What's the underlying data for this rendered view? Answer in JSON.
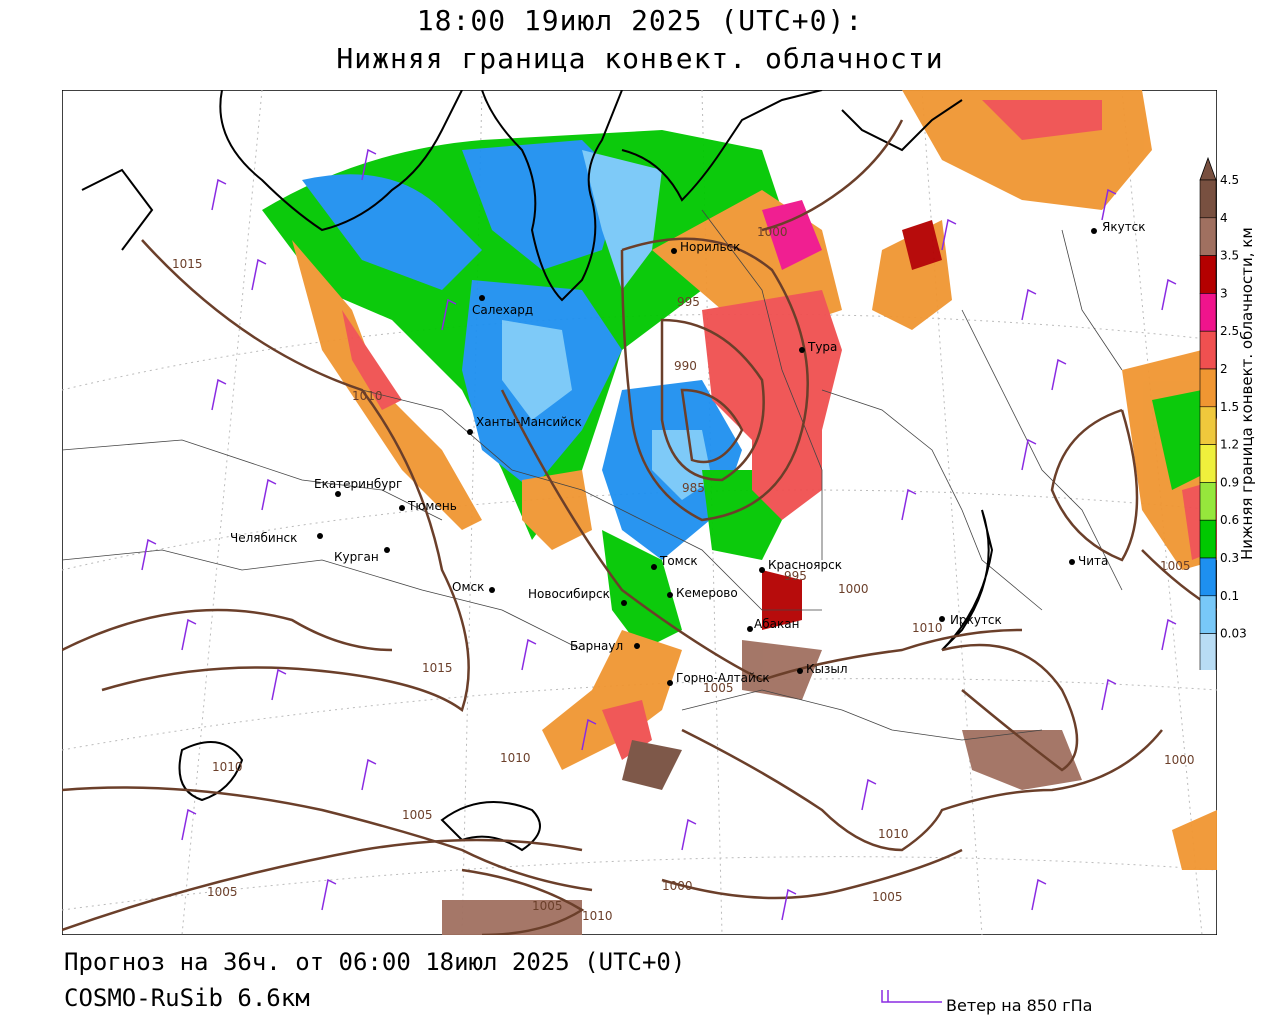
{
  "header": {
    "line1": "18:00 19июл 2025 (UTC+0):",
    "line2": "Нижняя граница конвект. облачности"
  },
  "footer": {
    "forecast": "Прогноз на 36ч. от 06:00 18июл 2025 (UTC+0)",
    "model": "COSMO-RuSib 6.6км",
    "wind_legend": "Ветер на 850 гПа"
  },
  "scale": {
    "title": "Нижняя граница конвект. облачности, км",
    "levels": [
      "0.03",
      "0.1",
      "0.3",
      "0.6",
      "0.9",
      "1.2",
      "1.5",
      "2",
      "2.5",
      "3",
      "3.5",
      "4",
      "4.5"
    ],
    "colors": [
      "#e8e0f4",
      "#b8dcf4",
      "#78c8f8",
      "#1e90f0",
      "#00c800",
      "#96e63c",
      "#f0f03c",
      "#f0c83c",
      "#f09632",
      "#f05050",
      "#f0148c",
      "#b40000",
      "#a07060",
      "#785040"
    ]
  },
  "cities": [
    {
      "name": "Якутск"
    },
    {
      "name": "Норильск"
    },
    {
      "name": "Тура"
    },
    {
      "name": "Салехард"
    },
    {
      "name": "Ханты-Мансийск"
    },
    {
      "name": "Екатеринбург"
    },
    {
      "name": "Тюмень"
    },
    {
      "name": "Челябинск"
    },
    {
      "name": "Курган"
    },
    {
      "name": "Омск"
    },
    {
      "name": "Новосибирск"
    },
    {
      "name": "Томск"
    },
    {
      "name": "Кемерово"
    },
    {
      "name": "Красноярск"
    },
    {
      "name": "Абакан"
    },
    {
      "name": "Барнаул"
    },
    {
      "name": "Горно-Алтайск"
    },
    {
      "name": "Кызыл"
    },
    {
      "name": "Иркутск"
    },
    {
      "name": "Чита"
    }
  ],
  "isobars": [
    "1015",
    "1000",
    "995",
    "990",
    "985",
    "1010",
    "1015",
    "1010",
    "1005",
    "1005",
    "1000",
    "1005",
    "1010",
    "1005",
    "1000",
    "1010",
    "1010",
    "1000",
    "995",
    "1005",
    "1010",
    "1005"
  ]
}
